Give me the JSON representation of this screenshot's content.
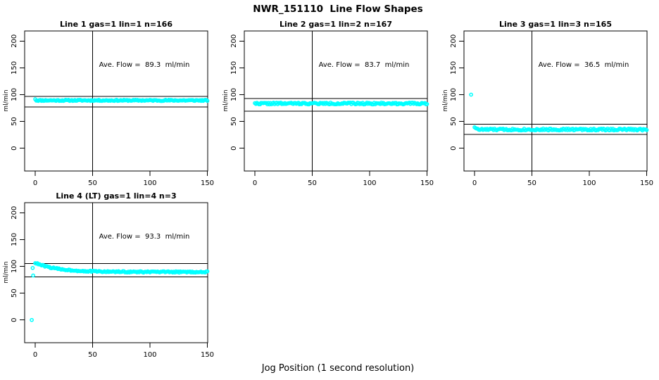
{
  "chart_data": {
    "type": "scatter",
    "title": "NWR_151110  Line Flow Shapes",
    "xlabel": "Jog Position (1 second resolution)",
    "ylabel": "ml/min",
    "x_ticks": [
      0,
      50,
      100,
      150
    ],
    "y_ticks": [
      0,
      50,
      100,
      150,
      200
    ],
    "xlim": [
      0,
      150
    ],
    "ylim": [
      0,
      200
    ],
    "point_color": "#00FFFF",
    "point_style": "open-circle",
    "line_color": "#000000",
    "subplots": [
      {
        "title": "Line 1 gas=1 lin=1 n=166",
        "annotation": "Ave. Flow =  89.3  ml/min",
        "ave_flow": 89.3,
        "n": 166,
        "vline_x": 50,
        "hlines": [
          97,
          77
        ],
        "series": {
          "shape": "flat",
          "level": 89.3,
          "noise": 1.1,
          "x_start": 0,
          "x_end": 150,
          "points": 166,
          "seed": 11,
          "ramp_in": [
            92
          ],
          "outliers": []
        }
      },
      {
        "title": "Line 2 gas=1 lin=2 n=167",
        "annotation": "Ave. Flow =  83.7  ml/min",
        "ave_flow": 83.7,
        "n": 167,
        "vline_x": 50,
        "hlines": [
          93,
          69
        ],
        "series": {
          "shape": "flat",
          "level": 83.5,
          "noise": 1.7,
          "x_start": 0,
          "x_end": 150,
          "points": 167,
          "seed": 22,
          "ramp_in": [
            85
          ],
          "outliers": []
        }
      },
      {
        "title": "Line 3 gas=1 lin=3 n=165",
        "annotation": "Ave. Flow =  36.5  ml/min",
        "ave_flow": 36.5,
        "n": 165,
        "vline_x": 50,
        "hlines": [
          45,
          26
        ],
        "series": {
          "shape": "flat",
          "level": 35.0,
          "noise": 1.8,
          "x_start": 0,
          "x_end": 150,
          "points": 164,
          "seed": 33,
          "ramp_in": [
            40,
            38.5,
            37
          ],
          "outliers": [
            [
              -3,
              100
            ]
          ]
        }
      },
      {
        "title": "Line 4 (LT) gas=1 lin=4 n=3",
        "annotation": "Ave. Flow =  93.3  ml/min",
        "ave_flow": 93.3,
        "n": 3,
        "vline_x": 50,
        "hlines": [
          105,
          80
        ],
        "series": {
          "shape": "settle",
          "level": 89.5,
          "amp": 17,
          "tau": 19,
          "noise": 1.2,
          "x_start": 0,
          "x_end": 150,
          "points": 160,
          "seed": 44,
          "ramp_in": [],
          "outliers": [
            [
              -3,
              0
            ],
            [
              -2.2,
              97
            ],
            [
              -1.8,
              83
            ]
          ]
        }
      }
    ]
  }
}
